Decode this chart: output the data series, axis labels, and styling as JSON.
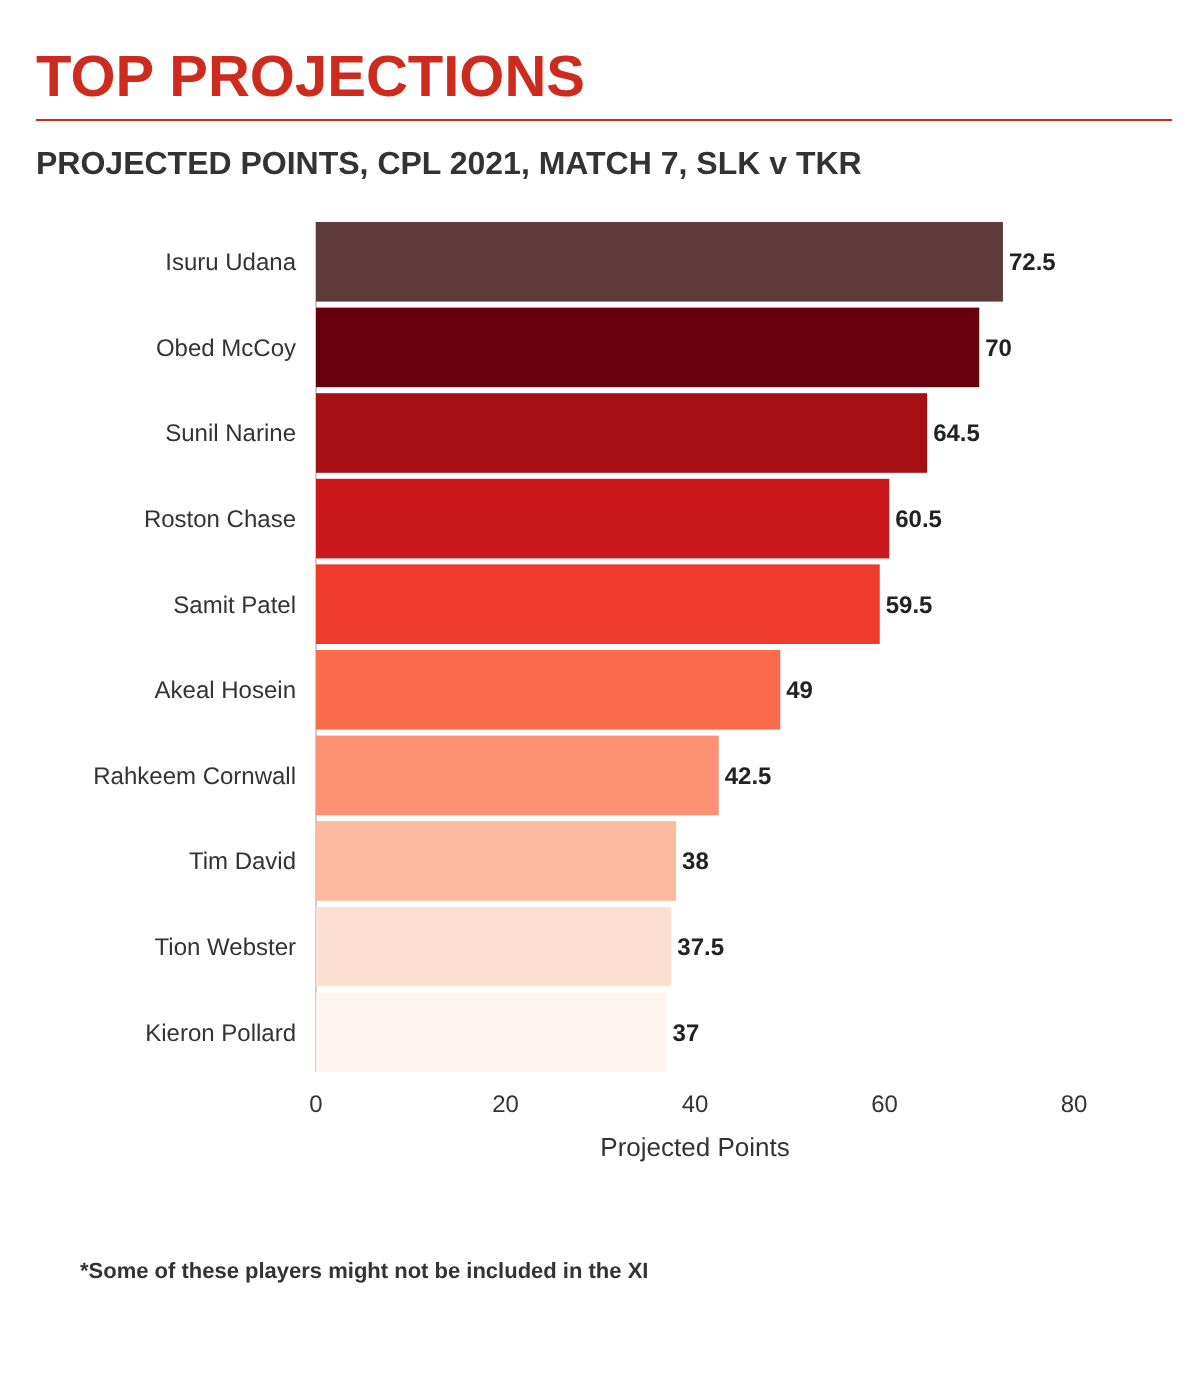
{
  "chart_data": {
    "type": "bar",
    "orientation": "horizontal",
    "title": "TOP PROJECTIONS",
    "subtitle": "PROJECTED POINTS, CPL 2021, MATCH 7, SLK v TKR",
    "xlabel": "Projected Points",
    "categories": [
      "Isuru Udana",
      "Obed McCoy",
      "Sunil Narine",
      "Roston Chase",
      "Samit Patel",
      "Akeal Hosein",
      "Rahkeem Cornwall",
      "Tim David",
      "Tion Webster",
      "Kieron Pollard"
    ],
    "values": [
      72.5,
      70,
      64.5,
      60.5,
      59.5,
      49,
      42.5,
      38,
      37.5,
      37
    ],
    "colors": [
      "#5e3a3d",
      "#67000d",
      "#a50f15",
      "#cb181d",
      "#ef3b2c",
      "#fb6a4a",
      "#fc9272",
      "#fcbba1",
      "#fee0d2",
      "#fff5f0"
    ],
    "xlim": [
      0,
      80
    ],
    "xticks": [
      0,
      20,
      40,
      60,
      80
    ],
    "data_labels": true,
    "grid": false,
    "annotations": [
      "*Some of these players might not be included in the XI"
    ]
  }
}
